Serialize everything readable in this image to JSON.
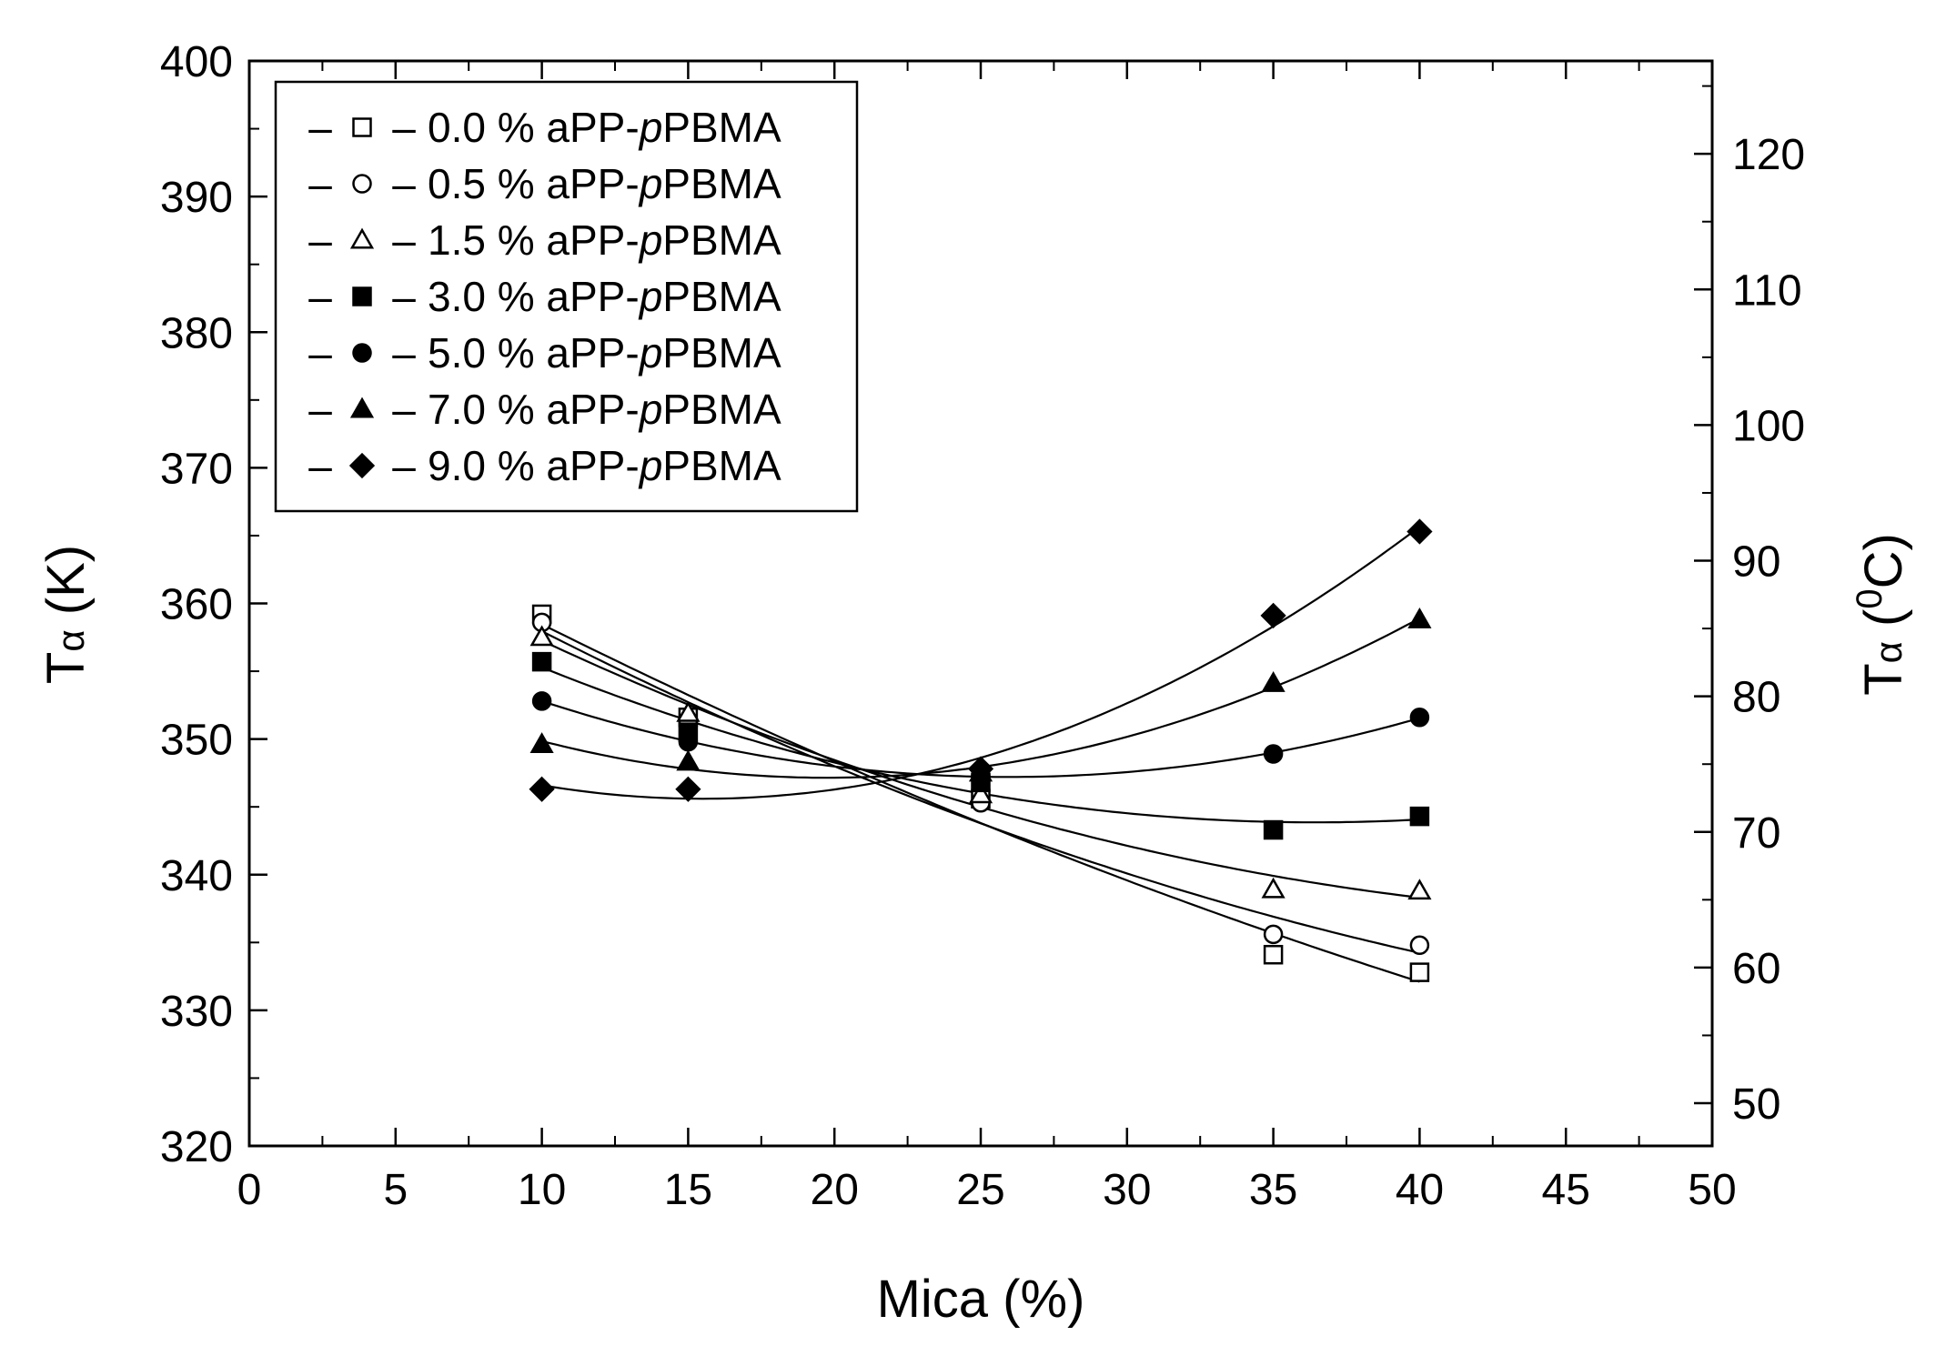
{
  "chart_data": {
    "type": "scatter",
    "title": "",
    "xlabel": "Mica (%)",
    "ylabel_left": {
      "main": "T",
      "sub": "α",
      "unit": " (K)"
    },
    "ylabel_right": {
      "main": "T",
      "sub": "α",
      "open": " (",
      "sup": "0",
      "unit": "C)"
    },
    "xlim": [
      0,
      50
    ],
    "ylim": [
      320,
      400
    ],
    "y2lim": [
      46.85,
      126.85
    ],
    "x_ticks": [
      0,
      5,
      10,
      15,
      20,
      25,
      30,
      35,
      40,
      45,
      50
    ],
    "x_tick_labels": [
      "0",
      "5",
      "10",
      "15",
      "20",
      "25",
      "30",
      "35",
      "40",
      "45",
      "50"
    ],
    "y_ticks": [
      320,
      330,
      340,
      350,
      360,
      370,
      380,
      390,
      400
    ],
    "y_tick_labels": [
      "320",
      "330",
      "340",
      "350",
      "360",
      "370",
      "380",
      "390",
      "400"
    ],
    "y2_ticks": [
      50,
      60,
      70,
      80,
      90,
      100,
      110,
      120
    ],
    "y2_tick_labels": [
      "50",
      "60",
      "70",
      "80",
      "90",
      "100",
      "110",
      "120"
    ],
    "legend_position": "top-left",
    "legend_dash": "–",
    "series": [
      {
        "name_prefix": "0.0 % aPP-",
        "name_italic": "p",
        "name_suffix": "PBMA",
        "marker": "square",
        "filled": false,
        "x": [
          10,
          15,
          25,
          35,
          40
        ],
        "y": [
          359.2,
          351.6,
          345.6,
          334.1,
          332.8
        ]
      },
      {
        "name_prefix": "0.5 % aPP-",
        "name_italic": "p",
        "name_suffix": "PBMA",
        "marker": "circle",
        "filled": false,
        "x": [
          10,
          15,
          25,
          35,
          40
        ],
        "y": [
          358.6,
          351.3,
          345.3,
          335.6,
          334.8
        ]
      },
      {
        "name_prefix": "1.5 % aPP-",
        "name_italic": "p",
        "name_suffix": "PBMA",
        "marker": "triangle",
        "filled": false,
        "x": [
          10,
          15,
          25,
          35,
          40
        ],
        "y": [
          357.5,
          351.9,
          345.9,
          338.9,
          338.8
        ]
      },
      {
        "name_prefix": "3.0 % aPP-",
        "name_italic": "p",
        "name_suffix": "PBMA",
        "marker": "square",
        "filled": true,
        "x": [
          10,
          15,
          25,
          35,
          40
        ],
        "y": [
          355.7,
          350.5,
          346.8,
          343.3,
          344.3
        ]
      },
      {
        "name_prefix": "5.0 % aPP-",
        "name_italic": "p",
        "name_suffix": "PBMA",
        "marker": "circle",
        "filled": true,
        "x": [
          10,
          15,
          25,
          35,
          40
        ],
        "y": [
          352.8,
          349.8,
          347.3,
          348.9,
          351.6
        ]
      },
      {
        "name_prefix": "7.0 % aPP-",
        "name_italic": "p",
        "name_suffix": "PBMA",
        "marker": "triangle",
        "filled": true,
        "x": [
          10,
          15,
          25,
          35,
          40
        ],
        "y": [
          349.6,
          348.3,
          347.5,
          354.1,
          358.8
        ]
      },
      {
        "name_prefix": "9.0 % aPP-",
        "name_italic": "p",
        "name_suffix": "PBMA",
        "marker": "diamond",
        "filled": true,
        "x": [
          10,
          15,
          25,
          35,
          40
        ],
        "y": [
          346.3,
          346.3,
          347.8,
          359.1,
          365.3
        ]
      }
    ]
  }
}
